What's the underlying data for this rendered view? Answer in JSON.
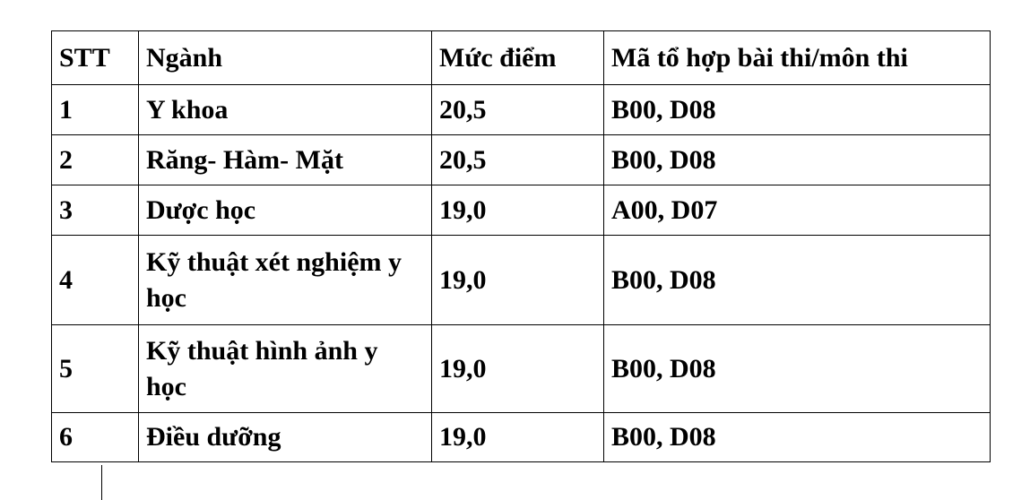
{
  "table": {
    "headers": [
      "STT",
      "Ngành",
      "Mức điểm",
      "Mã tổ hợp bài thi/môn thi"
    ],
    "rows": [
      [
        "1",
        "Y khoa",
        "20,5",
        "B00, D08"
      ],
      [
        "2",
        "Răng- Hàm- Mặt",
        "20,5",
        "B00, D08"
      ],
      [
        "3",
        "Dược học",
        "19,0",
        "A00, D07"
      ],
      [
        "4",
        "Kỹ thuật xét nghiệm y học",
        "19,0",
        "B00, D08"
      ],
      [
        "5",
        "Kỹ thuật hình ảnh y học",
        "19,0",
        "B00, D08"
      ],
      [
        "6",
        "Điều dưỡng",
        "19,0",
        "B00, D08"
      ]
    ]
  }
}
